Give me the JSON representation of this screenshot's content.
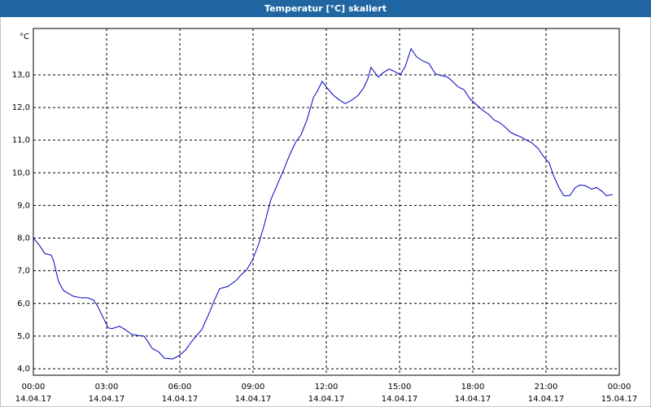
{
  "chart_data": {
    "type": "line",
    "title": "Temperatur [°C] skaliert",
    "y_unit": "°C",
    "x": [
      0,
      0.23,
      0.47,
      0.73,
      0.83,
      1.03,
      1.23,
      1.63,
      1.97,
      2.23,
      2.47,
      2.63,
      2.87,
      3.07,
      3.23,
      3.53,
      3.8,
      4.03,
      4.3,
      4.53,
      4.7,
      4.87,
      5.13,
      5.37,
      5.7,
      5.97,
      6.23,
      6.47,
      6.9,
      7.23,
      7.4,
      7.63,
      7.97,
      8.3,
      8.5,
      8.73,
      8.97,
      9.23,
      9.47,
      9.73,
      9.97,
      10.23,
      10.5,
      10.73,
      10.97,
      11.23,
      11.47,
      11.63,
      11.83,
      12.03,
      12.3,
      12.5,
      12.77,
      13.03,
      13.3,
      13.53,
      13.7,
      13.83,
      14.13,
      14.3,
      14.57,
      14.8,
      15.03,
      15.23,
      15.47,
      15.7,
      15.97,
      16.2,
      16.47,
      16.7,
      16.97,
      17.17,
      17.4,
      17.63,
      17.9,
      18.13,
      18.4,
      18.63,
      18.87,
      19.07,
      19.3,
      19.53,
      19.73,
      19.97,
      20.2,
      20.4,
      20.67,
      20.9,
      21.13,
      21.3,
      21.53,
      21.73,
      21.97,
      22.2,
      22.4,
      22.63,
      22.87,
      23.07,
      23.3,
      23.47,
      23.73
    ],
    "series": [
      {
        "name": "Temperatur",
        "color": "#0000c0",
        "values": [
          8.0,
          7.8,
          7.53,
          7.48,
          7.3,
          6.67,
          6.4,
          6.22,
          6.17,
          6.17,
          6.1,
          5.92,
          5.55,
          5.25,
          5.23,
          5.3,
          5.18,
          5.05,
          5.02,
          5.0,
          4.82,
          4.62,
          4.52,
          4.32,
          4.3,
          4.4,
          4.57,
          4.82,
          5.2,
          5.75,
          6.07,
          6.45,
          6.52,
          6.7,
          6.87,
          7.02,
          7.32,
          7.82,
          8.44,
          9.18,
          9.6,
          10.05,
          10.55,
          10.92,
          11.17,
          11.67,
          12.3,
          12.5,
          12.8,
          12.6,
          12.37,
          12.25,
          12.12,
          12.22,
          12.37,
          12.6,
          12.88,
          13.23,
          12.93,
          13.05,
          13.18,
          13.1,
          13.0,
          13.25,
          13.8,
          13.55,
          13.42,
          13.35,
          13.03,
          12.98,
          12.93,
          12.8,
          12.63,
          12.55,
          12.25,
          12.1,
          11.92,
          11.8,
          11.62,
          11.55,
          11.42,
          11.25,
          11.17,
          11.1,
          11.0,
          10.93,
          10.75,
          10.5,
          10.3,
          9.93,
          9.55,
          9.3,
          9.3,
          9.55,
          9.63,
          9.6,
          9.5,
          9.55,
          9.43,
          9.3,
          9.33
        ]
      }
    ],
    "xlim": [
      0,
      24
    ],
    "xticks": [
      {
        "value": 0,
        "label": "00:00"
      },
      {
        "value": 3,
        "label": "03:00"
      },
      {
        "value": 6,
        "label": "06:00"
      },
      {
        "value": 9,
        "label": "09:00"
      },
      {
        "value": 12,
        "label": "12:00"
      },
      {
        "value": 15,
        "label": "15:00"
      },
      {
        "value": 18,
        "label": "18:00"
      },
      {
        "value": 21,
        "label": "21:00"
      },
      {
        "value": 24,
        "label": "00:00"
      }
    ],
    "x_dates": [
      "14.04.17",
      "14.04.17",
      "14.04.17",
      "14.04.17",
      "14.04.17",
      "14.04.17",
      "14.04.17",
      "14.04.17",
      "15.04.17"
    ],
    "ylim": [
      3.8,
      14.42
    ],
    "yticks": [
      {
        "value": 4,
        "label": "4,0"
      },
      {
        "value": 5,
        "label": "5,0"
      },
      {
        "value": 6,
        "label": "6,0"
      },
      {
        "value": 7,
        "label": "7,0"
      },
      {
        "value": 8,
        "label": "8,0"
      },
      {
        "value": 9,
        "label": "9,0"
      },
      {
        "value": 10,
        "label": "10,0"
      },
      {
        "value": 11,
        "label": "11,0"
      },
      {
        "value": 12,
        "label": "12,0"
      },
      {
        "value": 13,
        "label": "13,0"
      }
    ],
    "grid": true
  }
}
